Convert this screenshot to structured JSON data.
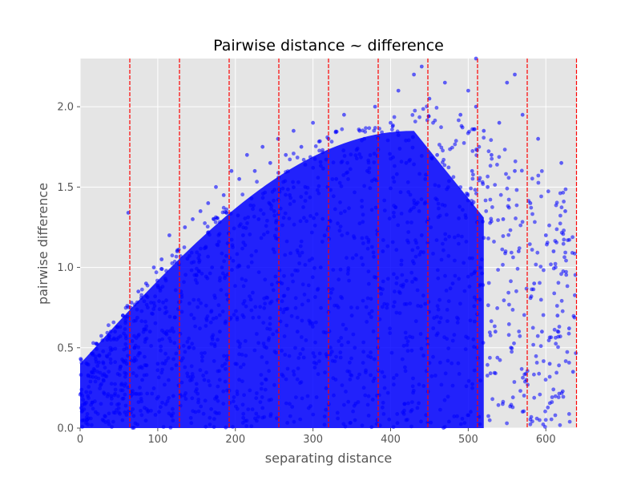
{
  "chart_data": {
    "type": "scatter",
    "title": "Pairwise distance ~ difference",
    "xlabel": "separating distance",
    "ylabel": "pairwise difference",
    "xlim": [
      0,
      640
    ],
    "ylim": [
      0,
      2.3
    ],
    "x_ticks": [
      0,
      100,
      200,
      300,
      400,
      500,
      600
    ],
    "y_ticks": [
      0.0,
      0.5,
      1.0,
      1.5,
      2.0
    ],
    "x_tick_labels": [
      "0",
      "100",
      "200",
      "300",
      "400",
      "500",
      "600"
    ],
    "y_tick_labels": [
      "0.0",
      "0.5",
      "1.0",
      "1.5",
      "2.0"
    ],
    "grid": true,
    "background": "#e5e5e5",
    "point_color": "#0000ff",
    "vline_color": "#ff0000",
    "vlines": [
      64,
      128,
      192,
      256,
      320,
      384,
      448,
      512,
      576,
      640
    ],
    "series": [
      {
        "points": [
          [
            5,
            0.05
          ],
          [
            10,
            0.2
          ],
          [
            15,
            0.35
          ],
          [
            20,
            0.1
          ],
          [
            25,
            0.45
          ],
          [
            30,
            0.3
          ],
          [
            35,
            0.55
          ],
          [
            40,
            0.2
          ],
          [
            45,
            0.6
          ],
          [
            50,
            0.15
          ],
          [
            55,
            0.7
          ],
          [
            60,
            0.4
          ],
          [
            62,
            1.34
          ],
          [
            65,
            0.75
          ],
          [
            70,
            0.5
          ],
          [
            75,
            0.85
          ],
          [
            80,
            0.3
          ],
          [
            85,
            0.9
          ],
          [
            90,
            0.6
          ],
          [
            95,
            1.0
          ],
          [
            100,
            0.4
          ],
          [
            105,
            1.05
          ],
          [
            110,
            0.75
          ],
          [
            115,
            1.2
          ],
          [
            120,
            0.2
          ],
          [
            125,
            1.1
          ],
          [
            130,
            0.85
          ],
          [
            135,
            1.25
          ],
          [
            140,
            0.5
          ],
          [
            145,
            1.3
          ],
          [
            150,
            0.95
          ],
          [
            155,
            1.35
          ],
          [
            160,
            0.3
          ],
          [
            165,
            1.4
          ],
          [
            170,
            1.0
          ],
          [
            175,
            1.5
          ],
          [
            180,
            0.6
          ],
          [
            185,
            1.45
          ],
          [
            190,
            1.15
          ],
          [
            195,
            1.6
          ],
          [
            200,
            0.4
          ],
          [
            205,
            1.55
          ],
          [
            210,
            1.2
          ],
          [
            215,
            1.7
          ],
          [
            220,
            0.8
          ],
          [
            225,
            1.6
          ],
          [
            230,
            1.3
          ],
          [
            235,
            1.75
          ],
          [
            240,
            0.5
          ],
          [
            245,
            1.65
          ],
          [
            250,
            1.35
          ],
          [
            255,
            1.8
          ],
          [
            260,
            0.9
          ],
          [
            265,
            1.7
          ],
          [
            270,
            1.45
          ],
          [
            275,
            1.85
          ],
          [
            280,
            0.6
          ],
          [
            285,
            1.75
          ],
          [
            290,
            1.5
          ],
          [
            300,
            1.9
          ],
          [
            310,
            1.0
          ],
          [
            320,
            1.8
          ],
          [
            330,
            1.55
          ],
          [
            340,
            1.95
          ],
          [
            350,
            0.7
          ],
          [
            360,
            1.85
          ],
          [
            370,
            1.6
          ],
          [
            380,
            2.0
          ],
          [
            390,
            1.1
          ],
          [
            400,
            1.9
          ],
          [
            410,
            2.1
          ],
          [
            420,
            1.65
          ],
          [
            430,
            2.2
          ],
          [
            440,
            1.2
          ],
          [
            450,
            2.05
          ],
          [
            460,
            1.7
          ],
          [
            470,
            2.15
          ],
          [
            480,
            0.9
          ],
          [
            490,
            1.95
          ],
          [
            500,
            2.1
          ],
          [
            505,
            1.6
          ],
          [
            510,
            2.0
          ],
          [
            515,
            0.8
          ],
          [
            520,
            1.85
          ],
          [
            525,
            1.5
          ],
          [
            530,
            1.7
          ],
          [
            535,
            0.6
          ],
          [
            540,
            1.9
          ],
          [
            545,
            1.3
          ],
          [
            550,
            2.15
          ],
          [
            555,
            0.5
          ],
          [
            560,
            1.6
          ],
          [
            565,
            1.1
          ],
          [
            570,
            1.95
          ],
          [
            575,
            0.3
          ],
          [
            580,
            1.4
          ],
          [
            585,
            0.9
          ],
          [
            590,
            1.8
          ],
          [
            595,
            0.6
          ],
          [
            600,
            1.2
          ],
          [
            605,
            0.4
          ],
          [
            610,
            1.1
          ],
          [
            615,
            0.7
          ],
          [
            620,
            1.65
          ],
          [
            625,
            1.35
          ],
          [
            630,
            0.62
          ],
          [
            635,
            0.35
          ],
          [
            510,
            2.3
          ],
          [
            440,
            2.25
          ],
          [
            560,
            2.2
          ]
        ]
      }
    ]
  }
}
